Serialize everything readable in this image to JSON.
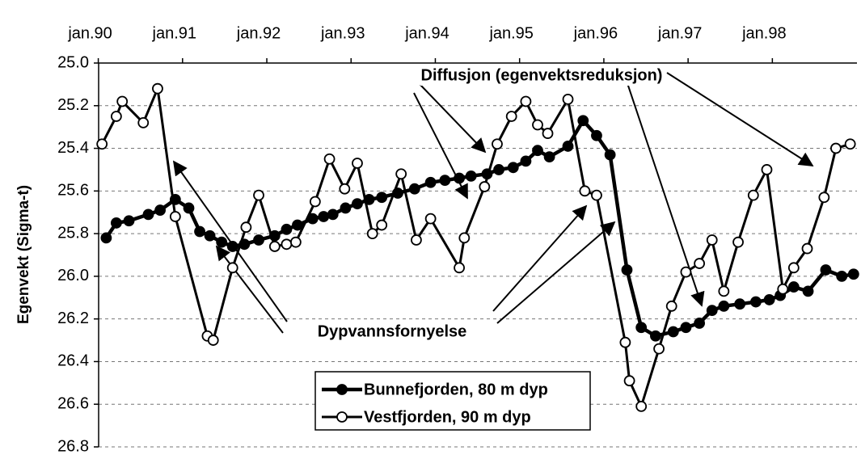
{
  "chart_data": {
    "type": "line",
    "y_label": "Egenvekt (Sigma-t)",
    "annotations": [
      "Diffusjon (egenvektsreduksjon)",
      "Dypvannsfornyelse"
    ],
    "xlim": [
      1990.1,
      1999.1
    ],
    "xticks": [
      {
        "value": 1990,
        "label": "jan.90"
      },
      {
        "value": 1991,
        "label": "jan.91"
      },
      {
        "value": 1992,
        "label": "jan.92"
      },
      {
        "value": 1993,
        "label": "jan.93"
      },
      {
        "value": 1994,
        "label": "jan.94"
      },
      {
        "value": 1995,
        "label": "jan.95"
      },
      {
        "value": 1996,
        "label": "jan.96"
      },
      {
        "value": 1997,
        "label": "jan.97"
      },
      {
        "value": 1998,
        "label": "jan.98"
      }
    ],
    "ylim": [
      25.0,
      26.8
    ],
    "y_inverted": true,
    "yticks": [
      {
        "value": 25,
        "label": "25.0"
      },
      25.2,
      25.4,
      25.6,
      25.8,
      {
        "value": 26,
        "label": "26.0"
      },
      26.2,
      26.4,
      26.6,
      26.8
    ],
    "grid": true,
    "series": [
      {
        "name": "Bunnefjorden, 80 m dyp",
        "color": "#000000",
        "marker_fill": "#000000",
        "x": [
          1990.19,
          1990.31,
          1990.46,
          1990.69,
          1990.83,
          1991.01,
          1991.17,
          1991.3,
          1991.42,
          1991.56,
          1991.69,
          1991.83,
          1992.0,
          1992.19,
          1992.33,
          1992.46,
          1992.64,
          1992.77,
          1992.88,
          1993.03,
          1993.17,
          1993.31,
          1993.46,
          1993.65,
          1993.85,
          1994.04,
          1994.21,
          1994.38,
          1994.52,
          1994.71,
          1994.85,
          1995.02,
          1995.17,
          1995.31,
          1995.45,
          1995.67,
          1995.85,
          1996.01,
          1996.17,
          1996.37,
          1996.54,
          1996.71,
          1996.92,
          1997.07,
          1997.23,
          1997.38,
          1997.52,
          1997.71,
          1997.9,
          1998.06,
          1998.19,
          1998.35,
          1998.52,
          1998.73,
          1998.92,
          1999.06
        ],
        "values": [
          25.82,
          25.75,
          25.74,
          25.71,
          25.69,
          25.64,
          25.68,
          25.79,
          25.81,
          25.84,
          25.86,
          25.85,
          25.83,
          25.81,
          25.78,
          25.76,
          25.73,
          25.72,
          25.71,
          25.68,
          25.66,
          25.64,
          25.63,
          25.61,
          25.59,
          25.56,
          25.55,
          25.54,
          25.53,
          25.52,
          25.5,
          25.49,
          25.46,
          25.41,
          25.44,
          25.39,
          25.27,
          25.34,
          25.43,
          25.97,
          26.24,
          26.28,
          26.26,
          26.24,
          26.22,
          26.16,
          26.14,
          26.13,
          26.12,
          26.11,
          26.09,
          26.05,
          26.07,
          25.97,
          26.0,
          25.99
        ]
      },
      {
        "name": "Vestfjorden, 90 m dyp",
        "color": "#000000",
        "marker_fill": "#ffffff",
        "x": [
          1990.14,
          1990.31,
          1990.38,
          1990.63,
          1990.8,
          1991.01,
          1991.39,
          1991.46,
          1991.69,
          1991.85,
          1992.0,
          1992.19,
          1992.33,
          1992.44,
          1992.67,
          1992.84,
          1993.02,
          1993.17,
          1993.35,
          1993.46,
          1993.69,
          1993.87,
          1994.04,
          1994.38,
          1994.44,
          1994.68,
          1994.83,
          1995.0,
          1995.17,
          1995.31,
          1995.43,
          1995.67,
          1995.87,
          1996.01,
          1996.35,
          1996.4,
          1996.54,
          1996.75,
          1996.9,
          1997.07,
          1997.23,
          1997.38,
          1997.52,
          1997.69,
          1997.87,
          1998.03,
          1998.22,
          1998.35,
          1998.51,
          1998.71,
          1998.85,
          1999.02
        ],
        "values": [
          25.38,
          25.25,
          25.18,
          25.28,
          25.12,
          25.72,
          26.28,
          26.3,
          25.96,
          25.77,
          25.62,
          25.86,
          25.85,
          25.84,
          25.65,
          25.45,
          25.59,
          25.47,
          25.8,
          25.76,
          25.52,
          25.83,
          25.73,
          25.96,
          25.82,
          25.58,
          25.38,
          25.25,
          25.18,
          25.29,
          25.33,
          25.17,
          25.6,
          25.62,
          26.31,
          26.49,
          26.61,
          26.34,
          26.14,
          25.98,
          25.94,
          25.83,
          26.07,
          25.84,
          25.62,
          25.5,
          26.06,
          25.96,
          25.87,
          25.63,
          25.4,
          25.38
        ]
      }
    ]
  }
}
